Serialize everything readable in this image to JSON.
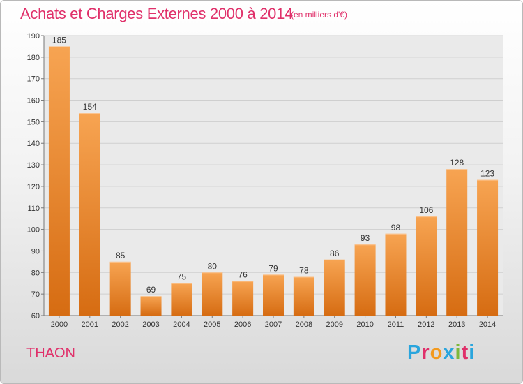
{
  "header": {
    "title": "Achats et Charges Externes 2000 à 2014",
    "unit": "(en milliers d'€)"
  },
  "footer": {
    "place": "THAON",
    "logo_letters": [
      "P",
      "r",
      "o",
      "x",
      "i",
      "t",
      "i"
    ],
    "logo_colors": [
      "#2aa5dd",
      "#e0306a",
      "#f39a1e",
      "#2aa5dd",
      "#7cb83a",
      "#e0306a",
      "#2aa5dd"
    ]
  },
  "colors": {
    "bar": "#f08a2a",
    "title": "#e0306a"
  },
  "chart_data": {
    "type": "bar",
    "title": "Achats et Charges Externes 2000 à 2014",
    "subtitle": "(en milliers d'€)",
    "categories": [
      "2000",
      "2001",
      "2002",
      "2003",
      "2004",
      "2005",
      "2006",
      "2007",
      "2008",
      "2009",
      "2010",
      "2011",
      "2012",
      "2013",
      "2014"
    ],
    "values": [
      185,
      154,
      85,
      69,
      75,
      80,
      76,
      79,
      78,
      86,
      93,
      98,
      106,
      128,
      123
    ],
    "ylim": [
      60,
      190
    ],
    "yticks": [
      60,
      70,
      80,
      90,
      100,
      110,
      120,
      130,
      140,
      150,
      160,
      170,
      180,
      190
    ],
    "grid": true
  }
}
